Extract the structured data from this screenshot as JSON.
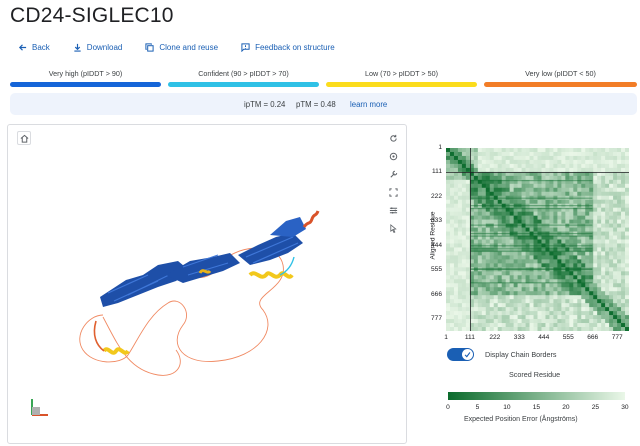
{
  "page": {
    "title": "CD24-SIGLEC10"
  },
  "toolbar": {
    "back": "Back",
    "download": "Download",
    "clone": "Clone and reuse",
    "feedback": "Feedback on structure"
  },
  "legend": [
    {
      "label": "Very high (pIDDT > 90)",
      "color": "#1565d8"
    },
    {
      "label": "Confident (90 > pIDDT > 70)",
      "color": "#2fc1e6"
    },
    {
      "label": "Low (70 > pIDDT > 50)",
      "color": "#fbdc1c"
    },
    {
      "label": "Very low (pIDDT < 50)",
      "color": "#f27d27"
    }
  ],
  "metrics": {
    "iptm": "ipTM = 0.24",
    "ptm": "pTM = 0.48",
    "learn_more": "learn more"
  },
  "viewer": {
    "controls": [
      "reset-view-icon",
      "target-icon",
      "wrench-icon",
      "expand-icon",
      "sliders-icon",
      "pointer-icon"
    ],
    "corner": "home-icon"
  },
  "pae": {
    "y_axis_label": "Aligned Residue",
    "x_axis_label": "Scored Residue",
    "ticks": [
      "1",
      "111",
      "222",
      "333",
      "444",
      "555",
      "666",
      "777"
    ],
    "chain_border_at": 111,
    "total_residues": 830,
    "toggle_label": "Display Chain Borders",
    "toggle_on": true,
    "colorbar": {
      "ticks": [
        "0",
        "5",
        "10",
        "15",
        "20",
        "25",
        "30"
      ],
      "label": "Expected Position Error (Ångströms)",
      "min": 0,
      "max": 30,
      "color_low": "#0b6b2c",
      "color_high": "#eaf7e8"
    }
  }
}
